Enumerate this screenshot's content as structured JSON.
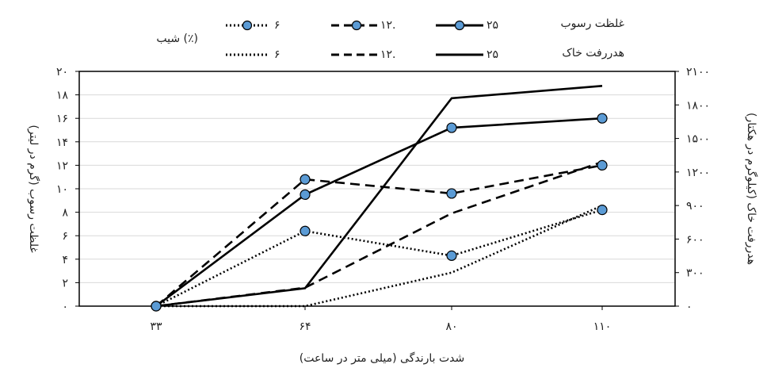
{
  "chart_data": {
    "type": "line",
    "x_categories": [
      "۳۳",
      "۶۴",
      "۸۰",
      "۱۱۰"
    ],
    "xlabel": "شدت بارندگی (میلی متر در ساعت)",
    "ylabel_left": "غلظت رسوب (گرم در لیتر)",
    "ylabel_right": "هدررفت خاک (کیلوگرم در هکتار)",
    "y_left": {
      "min": 0,
      "max": 20,
      "ticks": [
        "۰",
        "۲",
        "۴",
        "۶",
        "۸",
        "۱۰",
        "۱۲",
        "۱۴",
        "۱۶",
        "۱۸",
        "۲۰"
      ]
    },
    "y_right": {
      "min": 0,
      "max": 2100,
      "ticks": [
        "۰",
        "۳۰۰",
        "۶۰۰",
        "۹۰۰",
        "۱۲۰۰",
        "۱۵۰۰",
        "۱۸۰۰",
        "۲۱۰۰"
      ]
    },
    "grid": "horizontal",
    "legend": {
      "slope_title": "شیب (٪)",
      "row1_label": "غلظت رسوب",
      "row2_label": "هدررفت خاک",
      "slope_25": "۲۵",
      "slope_12": "۱۲.",
      "slope_6": "۶"
    },
    "sediment_series": [
      {
        "slope": "25",
        "style": "solid",
        "values": [
          0,
          9.5,
          15.2,
          16.0
        ]
      },
      {
        "slope": "12",
        "style": "dashed",
        "values": [
          0,
          10.8,
          9.6,
          12.0
        ]
      },
      {
        "slope": "6",
        "style": "dotted",
        "values": [
          0,
          6.4,
          4.3,
          8.2
        ]
      }
    ],
    "soil_loss_series": [
      {
        "slope": "25",
        "style": "solid",
        "values": [
          0,
          160,
          1860,
          1970
        ]
      },
      {
        "slope": "12",
        "style": "dashed",
        "values": [
          0,
          165,
          830,
          1290
        ]
      },
      {
        "slope": "6",
        "style": "dotted",
        "values": [
          0,
          0,
          300,
          900
        ]
      }
    ],
    "colors": {
      "marker_fill": "#5b9bd5",
      "line": "#000000",
      "grid": "#d9d9d9"
    }
  }
}
